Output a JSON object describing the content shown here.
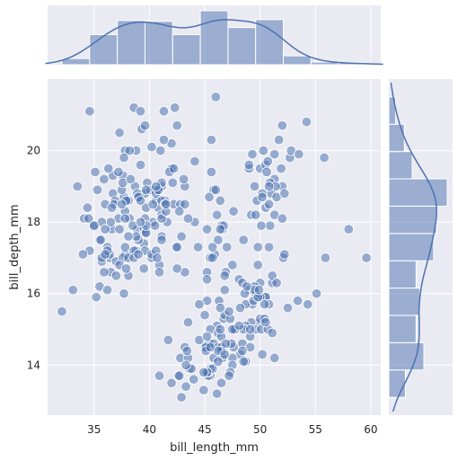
{
  "chart_data": {
    "type": "scatter",
    "style": "seaborn darkgrid jointplot with marginal histograms and KDE",
    "xlabel": "bill_length_mm",
    "ylabel": "bill_depth_mm",
    "xlim": [
      30.8,
      60.9
    ],
    "ylim": [
      12.6,
      22.0
    ],
    "xticks": [
      35,
      40,
      45,
      50,
      55,
      60
    ],
    "yticks": [
      14,
      16,
      18,
      20
    ],
    "grid": true,
    "colors": {
      "point": "#4c72b0",
      "panel_bg": "#eaeaf2",
      "grid": "#ffffff",
      "hist_fill": "#4c72b0",
      "kde_line": "#4c72b0"
    },
    "points_approx": [
      [
        39.1,
        18.7
      ],
      [
        39.5,
        17.4
      ],
      [
        40.3,
        18.0
      ],
      [
        36.7,
        19.3
      ],
      [
        39.3,
        20.6
      ],
      [
        38.9,
        17.8
      ],
      [
        39.2,
        19.6
      ],
      [
        34.1,
        18.1
      ],
      [
        42.0,
        20.2
      ],
      [
        37.8,
        17.1
      ],
      [
        37.8,
        17.3
      ],
      [
        41.1,
        17.6
      ],
      [
        38.6,
        21.2
      ],
      [
        34.6,
        21.1
      ],
      [
        36.6,
        17.8
      ],
      [
        38.7,
        19.0
      ],
      [
        42.5,
        20.7
      ],
      [
        34.4,
        18.4
      ],
      [
        46.0,
        21.5
      ],
      [
        37.8,
        18.3
      ],
      [
        37.7,
        18.7
      ],
      [
        35.9,
        19.2
      ],
      [
        38.2,
        18.1
      ],
      [
        38.8,
        17.2
      ],
      [
        35.3,
        18.9
      ],
      [
        40.6,
        18.6
      ],
      [
        40.5,
        17.9
      ],
      [
        37.9,
        18.6
      ],
      [
        40.5,
        18.9
      ],
      [
        39.5,
        16.7
      ],
      [
        37.2,
        18.1
      ],
      [
        39.5,
        17.8
      ],
      [
        40.9,
        18.9
      ],
      [
        36.4,
        17.0
      ],
      [
        39.2,
        21.1
      ],
      [
        38.8,
        20.0
      ],
      [
        42.2,
        18.5
      ],
      [
        37.6,
        19.3
      ],
      [
        39.8,
        19.1
      ],
      [
        36.5,
        18.0
      ],
      [
        40.8,
        18.4
      ],
      [
        36.0,
        18.5
      ],
      [
        44.1,
        19.7
      ],
      [
        37.0,
        16.9
      ],
      [
        39.6,
        18.8
      ],
      [
        41.1,
        19.0
      ],
      [
        37.5,
        18.9
      ],
      [
        42.3,
        21.2
      ],
      [
        39.6,
        17.7
      ],
      [
        40.1,
        18.9
      ],
      [
        35.0,
        17.9
      ],
      [
        42.0,
        19.5
      ],
      [
        34.5,
        18.1
      ],
      [
        41.4,
        18.6
      ],
      [
        39.0,
        17.5
      ],
      [
        40.6,
        18.8
      ],
      [
        36.5,
        16.6
      ],
      [
        37.6,
        19.1
      ],
      [
        35.7,
        16.9
      ],
      [
        41.3,
        21.1
      ],
      [
        37.6,
        17.0
      ],
      [
        41.1,
        18.2
      ],
      [
        36.4,
        17.1
      ],
      [
        41.6,
        18.0
      ],
      [
        35.5,
        16.2
      ],
      [
        41.1,
        19.1
      ],
      [
        35.9,
        16.6
      ],
      [
        41.8,
        19.4
      ],
      [
        33.5,
        19.0
      ],
      [
        39.7,
        18.4
      ],
      [
        39.6,
        17.2
      ],
      [
        45.8,
        18.9
      ],
      [
        35.5,
        17.5
      ],
      [
        42.8,
        18.5
      ],
      [
        40.9,
        16.8
      ],
      [
        37.2,
        19.4
      ],
      [
        36.2,
        16.1
      ],
      [
        42.1,
        19.1
      ],
      [
        34.6,
        17.2
      ],
      [
        42.9,
        17.6
      ],
      [
        36.7,
        18.8
      ],
      [
        35.1,
        19.4
      ],
      [
        37.3,
        17.8
      ],
      [
        41.3,
        20.3
      ],
      [
        36.3,
        19.5
      ],
      [
        36.9,
        18.6
      ],
      [
        38.3,
        19.2
      ],
      [
        38.9,
        18.8
      ],
      [
        35.7,
        18.0
      ],
      [
        41.1,
        18.1
      ],
      [
        34.0,
        17.1
      ],
      [
        39.6,
        18.1
      ],
      [
        36.2,
        17.3
      ],
      [
        40.8,
        18.9
      ],
      [
        38.1,
        18.6
      ],
      [
        40.3,
        18.5
      ],
      [
        33.1,
        16.1
      ],
      [
        43.2,
        18.5
      ],
      [
        35.0,
        17.9
      ],
      [
        41.0,
        20.0
      ],
      [
        37.7,
        16.0
      ],
      [
        37.8,
        20.0
      ],
      [
        37.9,
        18.6
      ],
      [
        39.7,
        18.9
      ],
      [
        38.6,
        17.2
      ],
      [
        38.2,
        20.0
      ],
      [
        38.1,
        17.0
      ],
      [
        43.2,
        19.0
      ],
      [
        38.1,
        16.5
      ],
      [
        45.6,
        20.3
      ],
      [
        39.7,
        17.7
      ],
      [
        42.2,
        19.5
      ],
      [
        39.6,
        20.7
      ],
      [
        42.7,
        18.3
      ],
      [
        38.6,
        17.0
      ],
      [
        37.3,
        20.5
      ],
      [
        35.7,
        17.0
      ],
      [
        41.1,
        18.6
      ],
      [
        36.2,
        17.2
      ],
      [
        37.7,
        19.8
      ],
      [
        40.2,
        17.0
      ],
      [
        41.4,
        18.5
      ],
      [
        35.2,
        15.9
      ],
      [
        40.6,
        19.0
      ],
      [
        38.8,
        17.6
      ],
      [
        41.5,
        18.3
      ],
      [
        39.0,
        17.1
      ],
      [
        44.1,
        18.0
      ],
      [
        38.5,
        17.9
      ],
      [
        43.1,
        19.2
      ],
      [
        36.8,
        18.5
      ],
      [
        37.5,
        18.5
      ],
      [
        38.1,
        17.6
      ],
      [
        41.1,
        17.5
      ],
      [
        35.6,
        17.5
      ],
      [
        40.2,
        20.1
      ],
      [
        37.0,
        16.5
      ],
      [
        39.7,
        17.9
      ],
      [
        40.2,
        17.1
      ],
      [
        40.6,
        17.2
      ],
      [
        32.1,
        15.5
      ],
      [
        40.7,
        17.0
      ],
      [
        37.3,
        16.8
      ],
      [
        39.0,
        18.7
      ],
      [
        39.2,
        18.6
      ],
      [
        36.6,
        18.4
      ],
      [
        36.0,
        17.8
      ],
      [
        37.8,
        18.1
      ],
      [
        36.0,
        17.1
      ],
      [
        41.5,
        18.5
      ],
      [
        46.5,
        17.9
      ],
      [
        50.0,
        19.5
      ],
      [
        51.3,
        19.2
      ],
      [
        45.4,
        18.7
      ],
      [
        52.7,
        19.8
      ],
      [
        45.2,
        17.8
      ],
      [
        46.1,
        18.2
      ],
      [
        51.3,
        18.2
      ],
      [
        46.0,
        18.9
      ],
      [
        51.3,
        19.9
      ],
      [
        46.6,
        17.8
      ],
      [
        51.7,
        20.3
      ],
      [
        47.0,
        17.3
      ],
      [
        52.0,
        18.1
      ],
      [
        45.9,
        17.1
      ],
      [
        50.5,
        19.6
      ],
      [
        50.3,
        20.0
      ],
      [
        58.0,
        17.8
      ],
      [
        46.4,
        18.6
      ],
      [
        49.2,
        18.2
      ],
      [
        42.4,
        17.3
      ],
      [
        48.5,
        17.5
      ],
      [
        43.2,
        16.6
      ],
      [
        50.6,
        19.4
      ],
      [
        46.7,
        17.9
      ],
      [
        52.0,
        19.0
      ],
      [
        50.5,
        18.4
      ],
      [
        49.5,
        19.0
      ],
      [
        46.4,
        17.8
      ],
      [
        52.8,
        20.0
      ],
      [
        40.9,
        16.6
      ],
      [
        54.2,
        20.8
      ],
      [
        42.5,
        16.7
      ],
      [
        51.0,
        18.8
      ],
      [
        49.7,
        18.6
      ],
      [
        47.5,
        16.8
      ],
      [
        47.6,
        18.3
      ],
      [
        52.0,
        20.7
      ],
      [
        46.9,
        16.6
      ],
      [
        53.5,
        19.9
      ],
      [
        49.0,
        19.5
      ],
      [
        46.2,
        17.5
      ],
      [
        50.9,
        19.1
      ],
      [
        45.5,
        17.0
      ],
      [
        50.9,
        17.9
      ],
      [
        50.8,
        18.5
      ],
      [
        50.1,
        17.9
      ],
      [
        49.0,
        19.6
      ],
      [
        51.5,
        18.7
      ],
      [
        49.8,
        17.3
      ],
      [
        48.1,
        16.4
      ],
      [
        51.4,
        19.0
      ],
      [
        45.7,
        17.3
      ],
      [
        50.7,
        19.7
      ],
      [
        42.5,
        17.3
      ],
      [
        52.2,
        18.8
      ],
      [
        45.2,
        16.6
      ],
      [
        49.3,
        19.9
      ],
      [
        50.2,
        18.8
      ],
      [
        45.6,
        19.4
      ],
      [
        51.9,
        19.5
      ],
      [
        46.8,
        16.5
      ],
      [
        45.7,
        17.0
      ],
      [
        55.8,
        19.8
      ],
      [
        43.5,
        18.1
      ],
      [
        49.6,
        18.2
      ],
      [
        50.8,
        19.0
      ],
      [
        50.2,
        18.7
      ],
      [
        46.1,
        13.2
      ],
      [
        50.0,
        16.3
      ],
      [
        48.7,
        14.1
      ],
      [
        50.0,
        15.2
      ],
      [
        47.6,
        14.5
      ],
      [
        46.5,
        13.5
      ],
      [
        45.4,
        14.6
      ],
      [
        46.7,
        15.3
      ],
      [
        43.3,
        13.4
      ],
      [
        46.8,
        15.4
      ],
      [
        40.9,
        13.7
      ],
      [
        49.0,
        16.1
      ],
      [
        45.5,
        13.7
      ],
      [
        48.4,
        14.6
      ],
      [
        45.8,
        14.6
      ],
      [
        49.3,
        15.7
      ],
      [
        42.0,
        13.5
      ],
      [
        49.2,
        15.2
      ],
      [
        46.2,
        14.5
      ],
      [
        48.7,
        15.1
      ],
      [
        50.2,
        14.3
      ],
      [
        45.1,
        14.5
      ],
      [
        46.5,
        14.5
      ],
      [
        46.3,
        15.8
      ],
      [
        42.9,
        13.1
      ],
      [
        46.1,
        15.1
      ],
      [
        47.8,
        15.0
      ],
      [
        48.2,
        14.3
      ],
      [
        50.0,
        15.3
      ],
      [
        47.3,
        15.3
      ],
      [
        42.8,
        14.2
      ],
      [
        45.1,
        14.5
      ],
      [
        59.6,
        17.0
      ],
      [
        49.1,
        14.8
      ],
      [
        48.4,
        16.3
      ],
      [
        42.6,
        13.7
      ],
      [
        44.4,
        17.3
      ],
      [
        44.0,
        13.6
      ],
      [
        48.7,
        15.7
      ],
      [
        42.7,
        13.7
      ],
      [
        49.6,
        16.0
      ],
      [
        45.3,
        13.7
      ],
      [
        49.6,
        15.0
      ],
      [
        50.5,
        15.9
      ],
      [
        43.6,
        13.9
      ],
      [
        45.5,
        13.9
      ],
      [
        50.5,
        15.9
      ],
      [
        44.9,
        13.3
      ],
      [
        45.2,
        15.8
      ],
      [
        46.6,
        14.2
      ],
      [
        48.5,
        14.1
      ],
      [
        45.1,
        14.4
      ],
      [
        50.1,
        15.0
      ],
      [
        46.5,
        14.4
      ],
      [
        45.0,
        15.4
      ],
      [
        43.8,
        13.9
      ],
      [
        45.5,
        15.0
      ],
      [
        43.2,
        14.5
      ],
      [
        50.4,
        15.3
      ],
      [
        45.3,
        13.8
      ],
      [
        46.2,
        14.9
      ],
      [
        45.7,
        13.9
      ],
      [
        54.3,
        15.7
      ],
      [
        45.8,
        14.2
      ],
      [
        49.8,
        16.8
      ],
      [
        46.2,
        14.4
      ],
      [
        49.5,
        16.2
      ],
      [
        43.5,
        14.2
      ],
      [
        50.7,
        15.0
      ],
      [
        47.7,
        15.0
      ],
      [
        46.4,
        15.6
      ],
      [
        48.2,
        15.6
      ],
      [
        46.5,
        14.8
      ],
      [
        46.4,
        15.0
      ],
      [
        48.6,
        16.0
      ],
      [
        47.5,
        14.2
      ],
      [
        51.1,
        16.3
      ],
      [
        45.2,
        13.8
      ],
      [
        45.2,
        16.4
      ],
      [
        49.1,
        14.5
      ],
      [
        52.5,
        15.6
      ],
      [
        47.4,
        14.6
      ],
      [
        50.0,
        15.9
      ],
      [
        44.9,
        13.8
      ],
      [
        50.8,
        17.3
      ],
      [
        43.4,
        14.4
      ],
      [
        51.3,
        14.2
      ],
      [
        47.5,
        14.0
      ],
      [
        52.1,
        17.0
      ],
      [
        47.5,
        15.0
      ],
      [
        52.2,
        17.1
      ],
      [
        45.5,
        14.5
      ],
      [
        49.5,
        16.1
      ],
      [
        44.5,
        14.7
      ],
      [
        50.8,
        15.7
      ],
      [
        49.4,
        15.8
      ],
      [
        46.9,
        14.6
      ],
      [
        48.4,
        14.4
      ],
      [
        51.1,
        16.5
      ],
      [
        48.5,
        15.0
      ],
      [
        55.9,
        17.0
      ],
      [
        47.2,
        15.5
      ],
      [
        49.1,
        15.0
      ],
      [
        47.3,
        13.8
      ],
      [
        46.8,
        16.1
      ],
      [
        41.7,
        14.7
      ],
      [
        53.4,
        15.8
      ],
      [
        43.3,
        14.0
      ],
      [
        48.1,
        15.1
      ],
      [
        50.5,
        15.2
      ],
      [
        49.8,
        15.9
      ],
      [
        43.5,
        15.2
      ],
      [
        51.5,
        16.3
      ],
      [
        46.2,
        14.1
      ],
      [
        55.1,
        16.0
      ],
      [
        44.5,
        15.7
      ],
      [
        48.8,
        16.2
      ],
      [
        47.2,
        13.7
      ],
      [
        46.8,
        14.3
      ],
      [
        50.4,
        15.7
      ],
      [
        45.2,
        14.8
      ],
      [
        49.9,
        16.1
      ],
      [
        37.9,
        16.7
      ],
      [
        39.2,
        18.0
      ],
      [
        51.1,
        14.9
      ]
    ]
  }
}
